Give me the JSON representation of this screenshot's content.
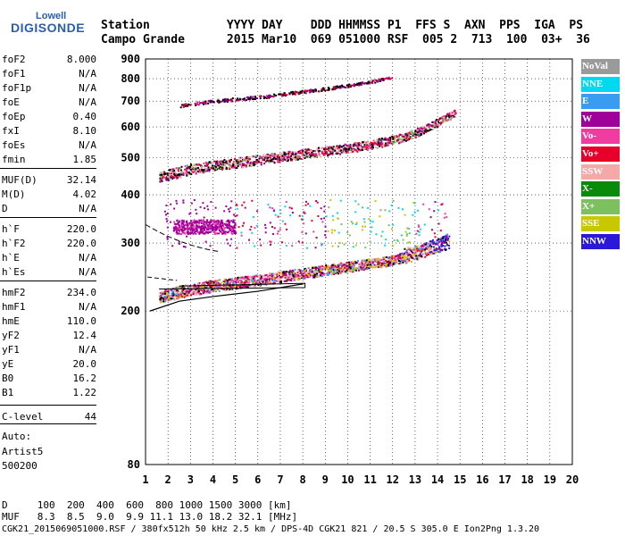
{
  "logo": {
    "line1": "Lowell",
    "line2": "DIGISONDE"
  },
  "header": {
    "row1": "Station           YYYY DAY    DDD HHMMSS P1  FFS S  AXN  PPS  IGA  PS",
    "row2": "Campo Grande      2015 Mar10  069 051000 RSF  005 2  713  100  03+  36"
  },
  "params": [
    {
      "label": "foF2",
      "value": "8.000"
    },
    {
      "label": "foF1",
      "value": "N/A"
    },
    {
      "label": "foF1p",
      "value": "N/A"
    },
    {
      "label": "foE",
      "value": "N/A"
    },
    {
      "label": "foEp",
      "value": "0.40"
    },
    {
      "label": "fxI",
      "value": "8.10"
    },
    {
      "label": "foEs",
      "value": "N/A"
    },
    {
      "label": "fmin",
      "value": "1.85"
    },
    {
      "label": "MUF(D)",
      "value": "32.14"
    },
    {
      "label": "M(D)",
      "value": "4.02"
    },
    {
      "label": "D",
      "value": "N/A"
    },
    {
      "label": "h`F",
      "value": "220.0"
    },
    {
      "label": "h`F2",
      "value": "220.0"
    },
    {
      "label": "h`E",
      "value": "N/A"
    },
    {
      "label": "h`Es",
      "value": "N/A"
    },
    {
      "label": "hmF2",
      "value": "234.0"
    },
    {
      "label": "hmF1",
      "value": "N/A"
    },
    {
      "label": "hmE",
      "value": "110.0"
    },
    {
      "label": "yF2",
      "value": "12.4"
    },
    {
      "label": "yF1",
      "value": "N/A"
    },
    {
      "label": "yE",
      "value": "20.0"
    },
    {
      "label": "B0",
      "value": "16.2"
    },
    {
      "label": "B1",
      "value": "1.22"
    },
    {
      "label": "C-level",
      "value": "44"
    }
  ],
  "auto": {
    "line1": "Auto:",
    "line2": "Artist5",
    "line3": "500200"
  },
  "legend": [
    {
      "label": "NoVal",
      "color": "#9a9a9a"
    },
    {
      "label": "NNE",
      "color": "#00d8f0"
    },
    {
      "label": "E",
      "color": "#3a9cf0"
    },
    {
      "label": "W",
      "color": "#a0009a"
    },
    {
      "label": "Vo-",
      "color": "#f03ca0"
    },
    {
      "label": "Vo+",
      "color": "#e8002a"
    },
    {
      "label": "SSW",
      "color": "#f5a8a8"
    },
    {
      "label": "X-",
      "color": "#0a8a0a"
    },
    {
      "label": "X+",
      "color": "#7cc060"
    },
    {
      "label": "SSE",
      "color": "#c8c800"
    },
    {
      "label": "NNW",
      "color": "#2a1ad8"
    }
  ],
  "footer": {
    "line1": "D     100  200  400  600  800 1000 1500 3000 [km]",
    "line2": "MUF   8.3  8.5  9.0  9.9 11.1 13.0 18.2 32.1 [MHz]",
    "line3": "CGK21_2015069051000.RSF / 380fx512h 50 kHz 2.5 km / DPS-4D CGK21 821 / 20.5 S 305.0 E Ion2Png 1.3.20"
  },
  "chart_data": {
    "type": "scatter",
    "title": "",
    "xlabel": "",
    "ylabel": "",
    "xlim": [
      1,
      20
    ],
    "ylim": [
      80,
      900
    ],
    "y_scale": "log",
    "x_ticks": [
      1,
      2,
      3,
      4,
      5,
      6,
      7,
      8,
      9,
      10,
      11,
      12,
      13,
      14,
      15,
      16,
      17,
      18,
      19,
      20
    ],
    "y_ticks": [
      80,
      200,
      300,
      400,
      500,
      600,
      700,
      800,
      900
    ],
    "grid": true,
    "traces": [
      {
        "name": "F2 O-trace",
        "x": [
          1.6,
          2.5,
          4.0,
          6.0,
          8.0,
          10.0,
          12.0,
          13.5,
          14.5
        ],
        "y": [
          215,
          222,
          230,
          238,
          248,
          258,
          268,
          285,
          300
        ]
      },
      {
        "name": "second hop",
        "x": [
          1.6,
          3.0,
          5.0,
          7.0,
          9.0,
          11.0,
          12.5,
          13.5,
          14.8
        ],
        "y": [
          440,
          462,
          480,
          498,
          515,
          535,
          560,
          590,
          650
        ]
      },
      {
        "name": "third hop",
        "x": [
          2.5,
          4.0,
          6.0,
          8.0,
          9.5,
          11.0,
          12.0
        ],
        "y": [
          680,
          700,
          715,
          740,
          760,
          785,
          805
        ]
      }
    ],
    "profile_line": {
      "x": [
        1.2,
        2.5,
        4.0,
        6.0,
        8.0
      ],
      "y": [
        200,
        212,
        218,
        225,
        235
      ]
    }
  }
}
